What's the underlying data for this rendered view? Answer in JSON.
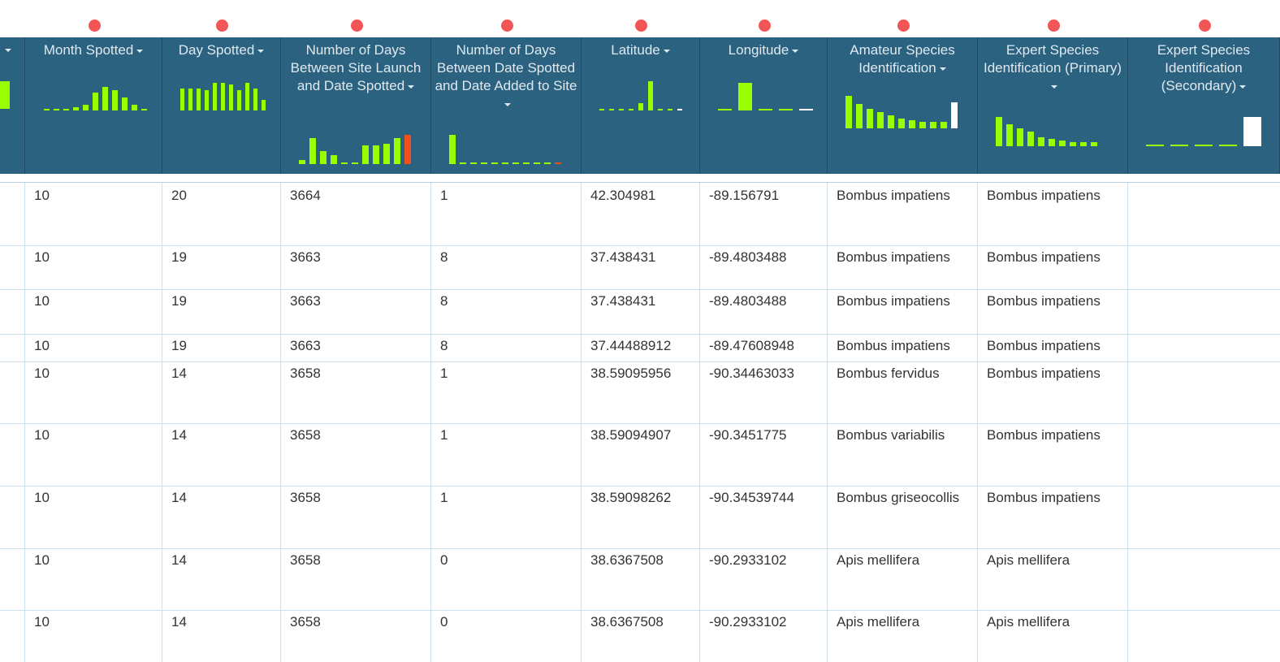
{
  "columns": [
    {
      "key": "prev",
      "label": "",
      "dot": false
    },
    {
      "key": "month",
      "label": "Month Spotted",
      "dot": true
    },
    {
      "key": "day",
      "label": "Day Spotted",
      "dot": true
    },
    {
      "key": "days_launch",
      "label": "Number of Days Between Site Launch and Date Spotted",
      "dot": true
    },
    {
      "key": "days_added",
      "label": "Number of Days Between Date Spotted and Date Added to Site",
      "dot": true
    },
    {
      "key": "lat",
      "label": "Latitude",
      "dot": true
    },
    {
      "key": "lon",
      "label": "Longitude",
      "dot": true
    },
    {
      "key": "amateur",
      "label": "Amateur Species Identification",
      "dot": true
    },
    {
      "key": "expert1",
      "label": "Expert Species Identification (Primary)",
      "dot": true
    },
    {
      "key": "expert2",
      "label": "Expert Species Identification (Secondary)",
      "dot": true
    }
  ],
  "colors": {
    "header_bg": "#2b6280",
    "bar_green": "#99ff00",
    "bar_orange": "#f24e1e",
    "bar_white": "#ffffff",
    "dot_red": "#f25556"
  },
  "histograms": {
    "prev": [
      {
        "v": 1.0,
        "c": "green"
      }
    ],
    "month": [
      {
        "v": 0.05
      },
      {
        "v": 0.05
      },
      {
        "v": 0.05
      },
      {
        "v": 0.1
      },
      {
        "v": 0.2
      },
      {
        "v": 0.6
      },
      {
        "v": 0.8
      },
      {
        "v": 0.7
      },
      {
        "v": 0.45
      },
      {
        "v": 0.2
      },
      {
        "v": 0.05
      }
    ],
    "day": [
      {
        "v": 0.75
      },
      {
        "v": 0.75
      },
      {
        "v": 0.75
      },
      {
        "v": 0.7
      },
      {
        "v": 0.95
      },
      {
        "v": 0.95
      },
      {
        "v": 0.9
      },
      {
        "v": 0.7
      },
      {
        "v": 0.95
      },
      {
        "v": 0.75
      },
      {
        "v": 0.35
      }
    ],
    "days_launch": [
      {
        "v": 0.15
      },
      {
        "v": 0.9
      },
      {
        "v": 0.45
      },
      {
        "v": 0.3
      },
      {
        "v": 0.05
      },
      {
        "v": 0.05
      },
      {
        "v": 0.65
      },
      {
        "v": 0.65
      },
      {
        "v": 0.7
      },
      {
        "v": 0.9
      },
      {
        "v": 1.0,
        "c": "orange"
      }
    ],
    "days_added": [
      {
        "v": 1.0
      },
      {
        "v": 0.05
      },
      {
        "v": 0.05
      },
      {
        "v": 0.05
      },
      {
        "v": 0.05
      },
      {
        "v": 0.05
      },
      {
        "v": 0.05
      },
      {
        "v": 0.05
      },
      {
        "v": 0.05
      },
      {
        "v": 0.05
      },
      {
        "v": 0.05,
        "c": "orange"
      }
    ],
    "lat": [
      {
        "v": 0.05
      },
      {
        "v": 0.05
      },
      {
        "v": 0.05
      },
      {
        "v": 0.05
      },
      {
        "v": 0.25
      },
      {
        "v": 1.0
      },
      {
        "v": 0.05
      },
      {
        "v": 0.05
      },
      {
        "v": 0.05,
        "c": "white"
      }
    ],
    "lon": [
      {
        "v": 0.05
      },
      {
        "v": 1.0
      },
      {
        "v": 0.05
      },
      {
        "v": 0.05
      },
      {
        "v": 0.05,
        "c": "white"
      }
    ],
    "amateur": [
      {
        "v": 1.0
      },
      {
        "v": 0.75
      },
      {
        "v": 0.6
      },
      {
        "v": 0.5
      },
      {
        "v": 0.4
      },
      {
        "v": 0.3
      },
      {
        "v": 0.25
      },
      {
        "v": 0.2
      },
      {
        "v": 0.2
      },
      {
        "v": 0.2
      },
      {
        "v": 0.8,
        "c": "white"
      }
    ],
    "expert1": [
      {
        "v": 1.0
      },
      {
        "v": 0.75
      },
      {
        "v": 0.6
      },
      {
        "v": 0.5
      },
      {
        "v": 0.3
      },
      {
        "v": 0.25
      },
      {
        "v": 0.2
      },
      {
        "v": 0.15
      },
      {
        "v": 0.15
      },
      {
        "v": 0.15
      }
    ],
    "expert2": [
      {
        "v": 0.05
      },
      {
        "v": 0.05
      },
      {
        "v": 0.05
      },
      {
        "v": 0.05
      },
      {
        "v": 1.0,
        "c": "white"
      }
    ]
  },
  "rows": [
    {
      "month": "10",
      "day": "20",
      "days_launch": "3664",
      "days_added": "1",
      "lat": "42.304981",
      "lon": "-89.156791",
      "amateur": "Bombus impatiens",
      "expert1": "Bombus impatiens",
      "expert2": ""
    },
    {
      "month": "10",
      "day": "19",
      "days_launch": "3663",
      "days_added": "8",
      "lat": "37.438431",
      "lon": "-89.4803488",
      "amateur": "Bombus impatiens",
      "expert1": "Bombus impatiens",
      "expert2": ""
    },
    {
      "month": "10",
      "day": "19",
      "days_launch": "3663",
      "days_added": "8",
      "lat": "37.438431",
      "lon": "-89.4803488",
      "amateur": "Bombus impatiens",
      "expert1": "Bombus impatiens",
      "expert2": ""
    },
    {
      "month": "10",
      "day": "19",
      "days_launch": "3663",
      "days_added": "8",
      "lat": "37.44488912",
      "lon": "-89.47608948",
      "amateur": "Bombus impatiens",
      "expert1": "Bombus impatiens",
      "expert2": ""
    },
    {
      "month": "10",
      "day": "14",
      "days_launch": "3658",
      "days_added": "1",
      "lat": "38.59095956",
      "lon": "-90.34463033",
      "amateur": "Bombus fervidus",
      "expert1": "Bombus impatiens",
      "expert2": ""
    },
    {
      "month": "10",
      "day": "14",
      "days_launch": "3658",
      "days_added": "1",
      "lat": "38.59094907",
      "lon": "-90.3451775",
      "amateur": "Bombus variabilis",
      "expert1": "Bombus impatiens",
      "expert2": ""
    },
    {
      "month": "10",
      "day": "14",
      "days_launch": "3658",
      "days_added": "1",
      "lat": "38.59098262",
      "lon": "-90.34539744",
      "amateur": "Bombus griseocollis",
      "expert1": "Bombus impatiens",
      "expert2": ""
    },
    {
      "month": "10",
      "day": "14",
      "days_launch": "3658",
      "days_added": "0",
      "lat": "38.6367508",
      "lon": "-90.2933102",
      "amateur": "Apis mellifera",
      "expert1": "Apis mellifera",
      "expert2": ""
    },
    {
      "month": "10",
      "day": "14",
      "days_launch": "3658",
      "days_added": "0",
      "lat": "38.6367508",
      "lon": "-90.2933102",
      "amateur": "Apis mellifera",
      "expert1": "Apis mellifera",
      "expert2": ""
    }
  ]
}
